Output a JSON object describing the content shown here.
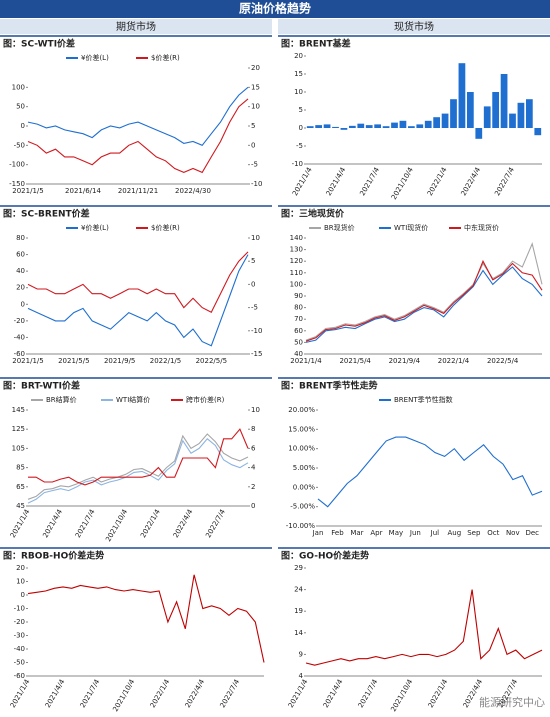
{
  "header": {
    "title": "原油价格趋势",
    "left": "期货市场",
    "right": "现货市场"
  },
  "watermark": "能源研究中心",
  "chart_data": [
    {
      "type": "line",
      "title": "图：SC-WTI价差",
      "rotate_xlabels": false,
      "categories": [
        "2021/1/5",
        null,
        null,
        null,
        null,
        null,
        "2021/6/14",
        null,
        null,
        null,
        null,
        null,
        "2021/11/21",
        null,
        null,
        null,
        null,
        null,
        "2022/4/30",
        null,
        null,
        null,
        null,
        null,
        null
      ],
      "series": [
        {
          "name": "¥价差(L)",
          "color": "#1f6fd1",
          "values": [
            10,
            5,
            -5,
            0,
            -10,
            -15,
            -20,
            -30,
            -10,
            0,
            -5,
            5,
            10,
            0,
            -10,
            -20,
            -30,
            -45,
            -40,
            -50,
            -20,
            10,
            50,
            80,
            100
          ]
        },
        {
          "name": "$价差(R)",
          "color": "#d0191f",
          "axis": "y2",
          "values": [
            1,
            0,
            -2,
            -1,
            -3,
            -3,
            -4,
            -5,
            -3,
            -2,
            -2,
            0,
            1,
            -1,
            -3,
            -4,
            -6,
            -7,
            -6,
            -7,
            -3,
            1,
            6,
            10,
            12
          ]
        }
      ],
      "ylim": [
        -150,
        150
      ],
      "yticks": [
        -150,
        -100,
        -50,
        0,
        50,
        100
      ],
      "y2lim": [
        -10,
        20
      ],
      "y2ticks": [
        -10,
        -5,
        0,
        5,
        10,
        15,
        20
      ]
    },
    {
      "type": "bar",
      "title": "图：BRENT基差",
      "rotate_xlabels": true,
      "color": "#1f6fd1",
      "categories": [
        "2021/1/4",
        null,
        null,
        null,
        "2021/4/4",
        null,
        null,
        null,
        "2021/7/4",
        null,
        null,
        null,
        "2021/10/4",
        null,
        null,
        null,
        "2022/1/4",
        null,
        null,
        null,
        "2022/4/4",
        null,
        null,
        null,
        "2022/7/4",
        null,
        null,
        null
      ],
      "values": [
        0.5,
        0.8,
        1,
        0.3,
        -0.5,
        0.6,
        1.2,
        0.8,
        1,
        0.5,
        1.5,
        2,
        0.5,
        1,
        2,
        3,
        4,
        8,
        18,
        10,
        -3,
        6,
        10,
        15,
        4,
        7,
        8,
        -2
      ],
      "ylim": [
        -10,
        20
      ],
      "yticks": [
        -10,
        -5,
        0,
        5,
        10,
        15,
        20
      ]
    },
    {
      "type": "line",
      "title": "图：SC-BRENT价差",
      "rotate_xlabels": false,
      "categories": [
        "2021/1/5",
        null,
        null,
        null,
        null,
        "2021/5/5",
        null,
        null,
        null,
        null,
        "2021/9/5",
        null,
        null,
        null,
        null,
        "2022/1/5",
        null,
        null,
        null,
        null,
        "2022/5/5",
        null,
        null,
        null,
        null
      ],
      "series": [
        {
          "name": "¥价差(L)",
          "color": "#1f6fd1",
          "values": [
            -5,
            -10,
            -15,
            -20,
            -20,
            -10,
            -5,
            -20,
            -25,
            -30,
            -20,
            -10,
            -15,
            -20,
            -10,
            -20,
            -25,
            -40,
            -30,
            -45,
            -50,
            -20,
            10,
            40,
            60
          ]
        },
        {
          "name": "$价差(R)",
          "color": "#d0191f",
          "axis": "y2",
          "values": [
            0,
            -1,
            -1,
            -2,
            -2,
            -1,
            0,
            -2,
            -2,
            -3,
            -2,
            -1,
            -1,
            -2,
            -1,
            -2,
            -2,
            -5,
            -3,
            -5,
            -6,
            -2,
            2,
            5,
            7
          ]
        }
      ],
      "ylim": [
        -60,
        80
      ],
      "yticks": [
        -60,
        -40,
        -20,
        0,
        20,
        40,
        60,
        80
      ],
      "y2lim": [
        -15,
        10
      ],
      "y2ticks": [
        -15,
        -10,
        -5,
        0,
        5,
        10
      ]
    },
    {
      "type": "line",
      "title": "图：三地现货价",
      "rotate_xlabels": false,
      "categories": [
        "2021/1/4",
        null,
        null,
        null,
        null,
        "2021/5/4",
        null,
        null,
        null,
        null,
        "2021/9/4",
        null,
        null,
        null,
        null,
        "2022/1/4",
        null,
        null,
        null,
        null,
        "2022/5/4",
        null,
        null,
        null,
        null
      ],
      "series": [
        {
          "name": "BR现货价",
          "color": "#a6a6a6",
          "values": [
            52,
            55,
            62,
            63,
            66,
            65,
            68,
            72,
            74,
            70,
            73,
            78,
            83,
            80,
            76,
            85,
            92,
            100,
            118,
            105,
            110,
            120,
            115,
            135,
            100
          ]
        },
        {
          "name": "WTI现货价",
          "color": "#1f6fd1",
          "values": [
            50,
            52,
            60,
            61,
            63,
            62,
            66,
            70,
            72,
            68,
            70,
            76,
            80,
            78,
            72,
            82,
            90,
            98,
            112,
            100,
            108,
            115,
            105,
            100,
            90
          ]
        },
        {
          "name": "中东现货价",
          "color": "#d0191f",
          "values": [
            51,
            54,
            61,
            62,
            65,
            64,
            67,
            71,
            73,
            69,
            72,
            77,
            82,
            79,
            75,
            84,
            91,
            99,
            120,
            104,
            109,
            118,
            110,
            108,
            95
          ]
        }
      ],
      "ylim": [
        40,
        140
      ],
      "yticks": [
        40,
        50,
        60,
        70,
        80,
        90,
        100,
        110,
        120,
        130,
        140
      ]
    },
    {
      "type": "line",
      "title": "图：BRT-WTI价差",
      "rotate_xlabels": true,
      "categories": [
        "2021/1/4",
        null,
        null,
        null,
        "2021/4/4",
        null,
        null,
        null,
        "2021/7/4",
        null,
        null,
        null,
        "2021/10/4",
        null,
        null,
        null,
        "2022/1/4",
        null,
        null,
        null,
        "2022/4/4",
        null,
        null,
        null,
        "2022/7/4",
        null,
        null,
        null
      ],
      "series": [
        {
          "name": "BR结算价",
          "color": "#a6a6a6",
          "values": [
            52,
            55,
            62,
            63,
            66,
            65,
            68,
            72,
            75,
            70,
            73,
            75,
            78,
            83,
            84,
            80,
            76,
            85,
            92,
            118,
            105,
            110,
            120,
            112,
            100,
            95,
            92,
            96
          ]
        },
        {
          "name": "WTI结算价",
          "color": "#8db4e2",
          "values": [
            48,
            52,
            59,
            61,
            63,
            61,
            65,
            70,
            72,
            67,
            70,
            72,
            75,
            80,
            81,
            77,
            72,
            82,
            89,
            113,
            100,
            105,
            115,
            108,
            93,
            88,
            85,
            90
          ]
        },
        {
          "name": "跨市价差(R)",
          "color": "#d0191f",
          "axis": "y2",
          "values": [
            3,
            3,
            2.5,
            2.5,
            2.8,
            3,
            2.5,
            2.2,
            2.5,
            3,
            3,
            3,
            3,
            3,
            3,
            3.2,
            4,
            3,
            3,
            5,
            5,
            5,
            5,
            4,
            7,
            7,
            8,
            6
          ]
        }
      ],
      "ylim": [
        45,
        145
      ],
      "yticks": [
        45,
        65,
        85,
        105,
        125,
        145
      ],
      "y2lim": [
        0,
        10
      ],
      "y2ticks": [
        0,
        2,
        4,
        6,
        8,
        10
      ]
    },
    {
      "type": "line",
      "title": "图：BRENT季节性走势",
      "rotate_xlabels": false,
      "categories": [
        "Jan",
        null,
        "Feb",
        null,
        "Mar",
        null,
        "Apr",
        null,
        "May",
        null,
        "Jun",
        null,
        "Jul",
        null,
        "Aug",
        null,
        "Sep",
        null,
        "Oct",
        null,
        "Nov",
        null,
        "Dec",
        null
      ],
      "series": [
        {
          "name": "BRENT季节性指数",
          "color": "#1f6fd1",
          "values": [
            -3,
            -5,
            -2,
            1,
            3,
            6,
            9,
            12,
            13,
            13,
            12,
            11,
            9,
            8,
            10,
            7,
            9,
            11,
            8,
            6,
            2,
            3,
            -2,
            -1
          ]
        }
      ],
      "ylim": [
        -10,
        20
      ],
      "yticks": [
        {
          "value": -10,
          "label": "-10.00%"
        },
        {
          "value": -5,
          "label": "-5.00%"
        },
        {
          "value": 0,
          "label": "0.00%"
        },
        {
          "value": 5,
          "label": "5.00%"
        },
        {
          "value": 10,
          "label": "10.00%"
        },
        {
          "value": 15,
          "label": "15.00%"
        },
        {
          "value": 20,
          "label": "20.00%"
        }
      ]
    },
    {
      "type": "line",
      "title": "图：RBOB-HO价差走势",
      "rotate_xlabels": true,
      "color": "#c00000",
      "categories": [
        "2021/1/4",
        null,
        null,
        null,
        "2021/4/4",
        null,
        null,
        null,
        "2021/7/4",
        null,
        null,
        null,
        "2021/10/4",
        null,
        null,
        null,
        "2022/1/4",
        null,
        null,
        null,
        "2022/4/4",
        null,
        null,
        null,
        "2022/7/4",
        null,
        null,
        null
      ],
      "values": [
        1,
        2,
        3,
        5,
        6,
        5,
        7,
        6,
        5,
        6,
        4,
        3,
        4,
        3,
        2,
        3,
        -20,
        -5,
        -25,
        15,
        -10,
        -8,
        -10,
        -15,
        -10,
        -12,
        -20,
        -50
      ],
      "ylim": [
        -60,
        20
      ],
      "yticks": [
        -60,
        -50,
        -40,
        -30,
        -20,
        -10,
        0,
        10,
        20
      ]
    },
    {
      "type": "line",
      "title": "图：GO-HO价差走势",
      "rotate_xlabels": true,
      "color": "#c00000",
      "categories": [
        "2021/1/4",
        null,
        null,
        null,
        "2021/4/4",
        null,
        null,
        null,
        "2021/7/4",
        null,
        null,
        null,
        "2021/10/4",
        null,
        null,
        null,
        "2022/1/4",
        null,
        null,
        null,
        "2022/4/4",
        null,
        null,
        null,
        "2022/7/4",
        null,
        null,
        null
      ],
      "values": [
        7,
        6.5,
        7,
        7.5,
        8,
        7.5,
        8,
        8,
        8.5,
        8,
        8.5,
        9,
        8.5,
        9,
        9,
        8.5,
        9,
        10,
        12,
        24,
        8,
        10,
        15,
        9,
        10,
        8,
        9,
        10
      ],
      "ylim": [
        4,
        29
      ],
      "yticks": [
        4,
        9,
        14,
        19,
        24,
        29
      ]
    }
  ]
}
